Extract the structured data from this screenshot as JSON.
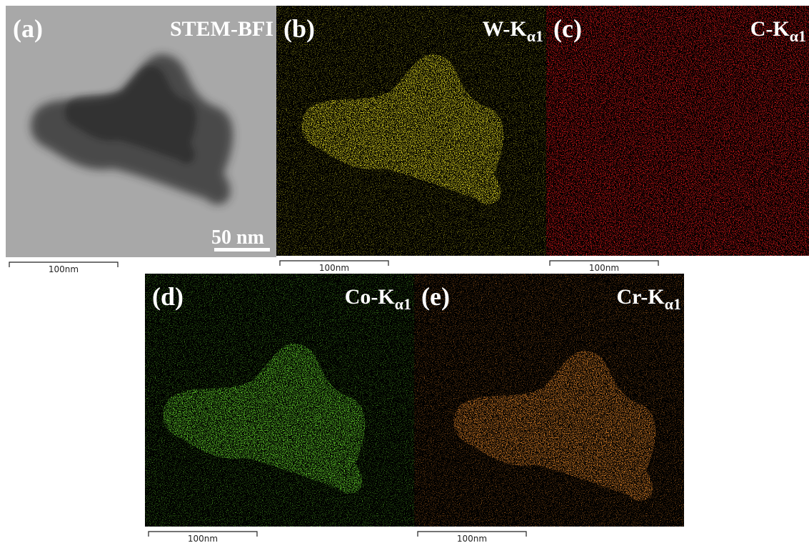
{
  "panels": [
    {
      "label": "(a)",
      "title": "STEM-BFI",
      "scale_bar": "50 nm",
      "caption_scale": "100nm"
    },
    {
      "label": "(b)",
      "title": "W-K",
      "title_sub": "α1",
      "caption_scale": "100nm"
    },
    {
      "label": "(c)",
      "title": "C-K",
      "title_sub": "α1",
      "caption_scale": "100nm"
    },
    {
      "label": "(d)",
      "title": "Co-K",
      "title_sub": "α1",
      "caption_scale": "100nm"
    },
    {
      "label": "(e)",
      "title": "Cr-K",
      "title_sub": "α1",
      "caption_scale": "100nm"
    }
  ]
}
